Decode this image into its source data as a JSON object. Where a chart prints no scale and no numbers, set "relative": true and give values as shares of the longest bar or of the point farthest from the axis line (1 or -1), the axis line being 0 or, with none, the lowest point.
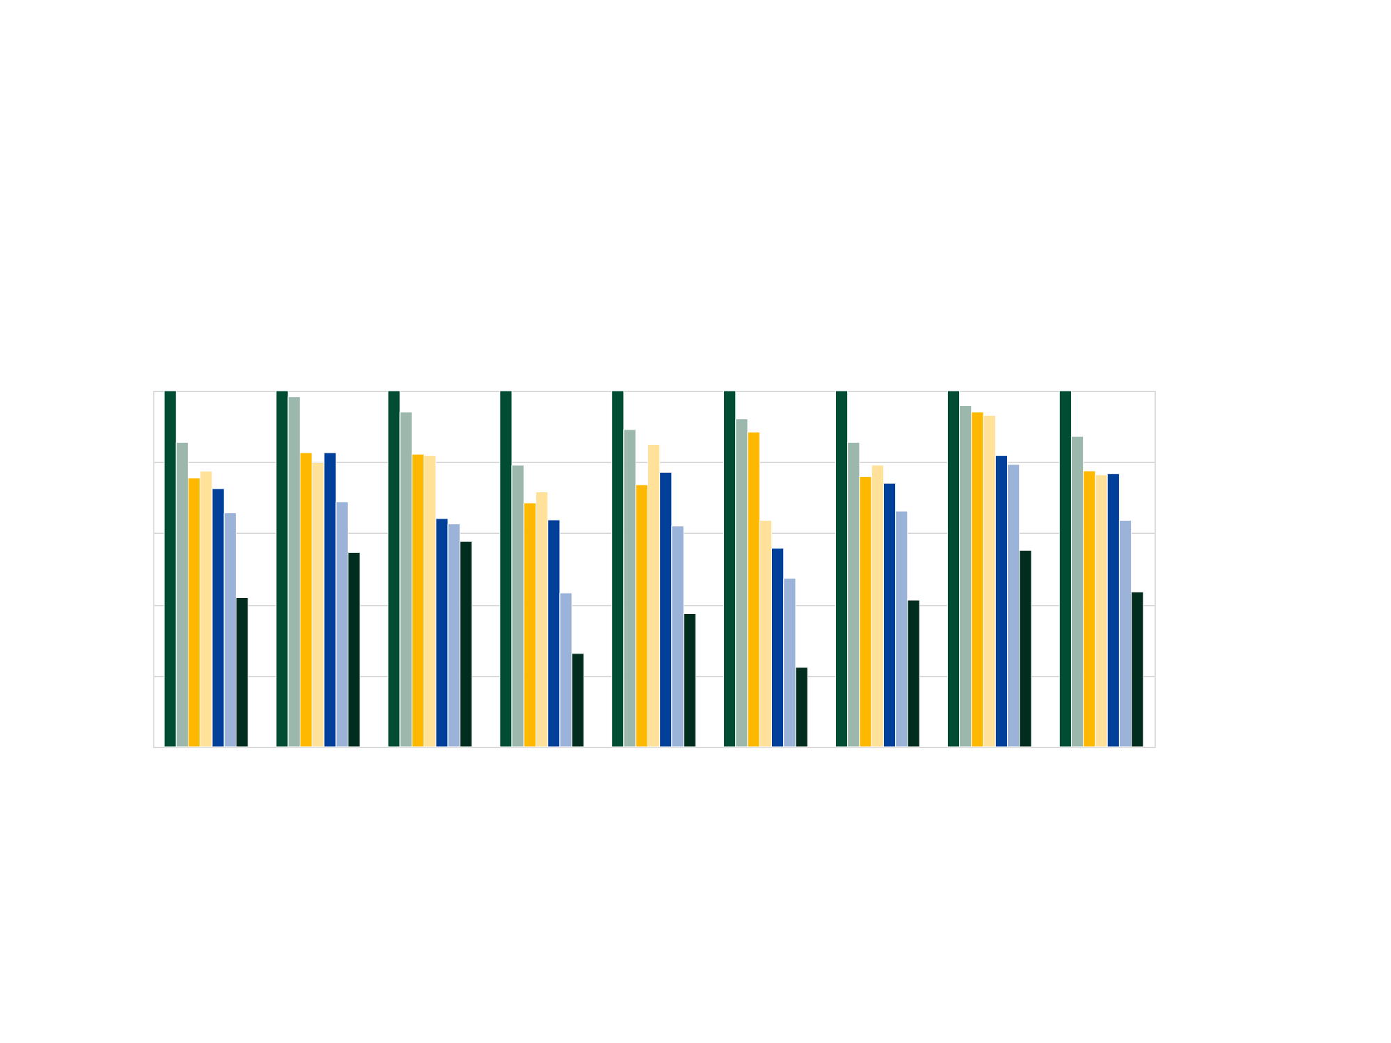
{
  "chart_data": {
    "type": "bar",
    "relative": true,
    "grid": true,
    "categories": [
      null,
      null,
      null,
      null,
      null,
      null,
      null,
      null,
      null
    ],
    "series": [
      {
        "color": "#004d33",
        "values": [
          1,
          1,
          1,
          1,
          1,
          1,
          1,
          1,
          1
        ]
      },
      {
        "color": "#9cb8ad",
        "values": [
          0.855,
          0.983,
          0.94,
          0.791,
          0.891,
          0.921,
          0.855,
          0.958,
          0.872
        ]
      },
      {
        "color": "#ffb800",
        "values": [
          0.755,
          0.826,
          0.822,
          0.685,
          0.736,
          0.884,
          0.759,
          0.94,
          0.775
        ]
      },
      {
        "color": "#ffe19a",
        "values": [
          0.774,
          0.798,
          0.818,
          0.716,
          0.849,
          0.636,
          0.791,
          0.931,
          0.764
        ]
      },
      {
        "color": "#003f9a",
        "values": [
          0.725,
          0.826,
          0.641,
          0.637,
          0.771,
          0.558,
          0.74,
          0.818,
          0.767
        ]
      },
      {
        "color": "#9bb3d9",
        "values": [
          0.657,
          0.688,
          0.626,
          0.432,
          0.62,
          0.473,
          0.662,
          0.793,
          0.636
        ]
      },
      {
        "color": "#002d1e",
        "values": [
          0.419,
          0.546,
          0.577,
          0.262,
          0.374,
          0.223,
          0.412,
          0.552,
          0.435
        ]
      }
    ]
  }
}
